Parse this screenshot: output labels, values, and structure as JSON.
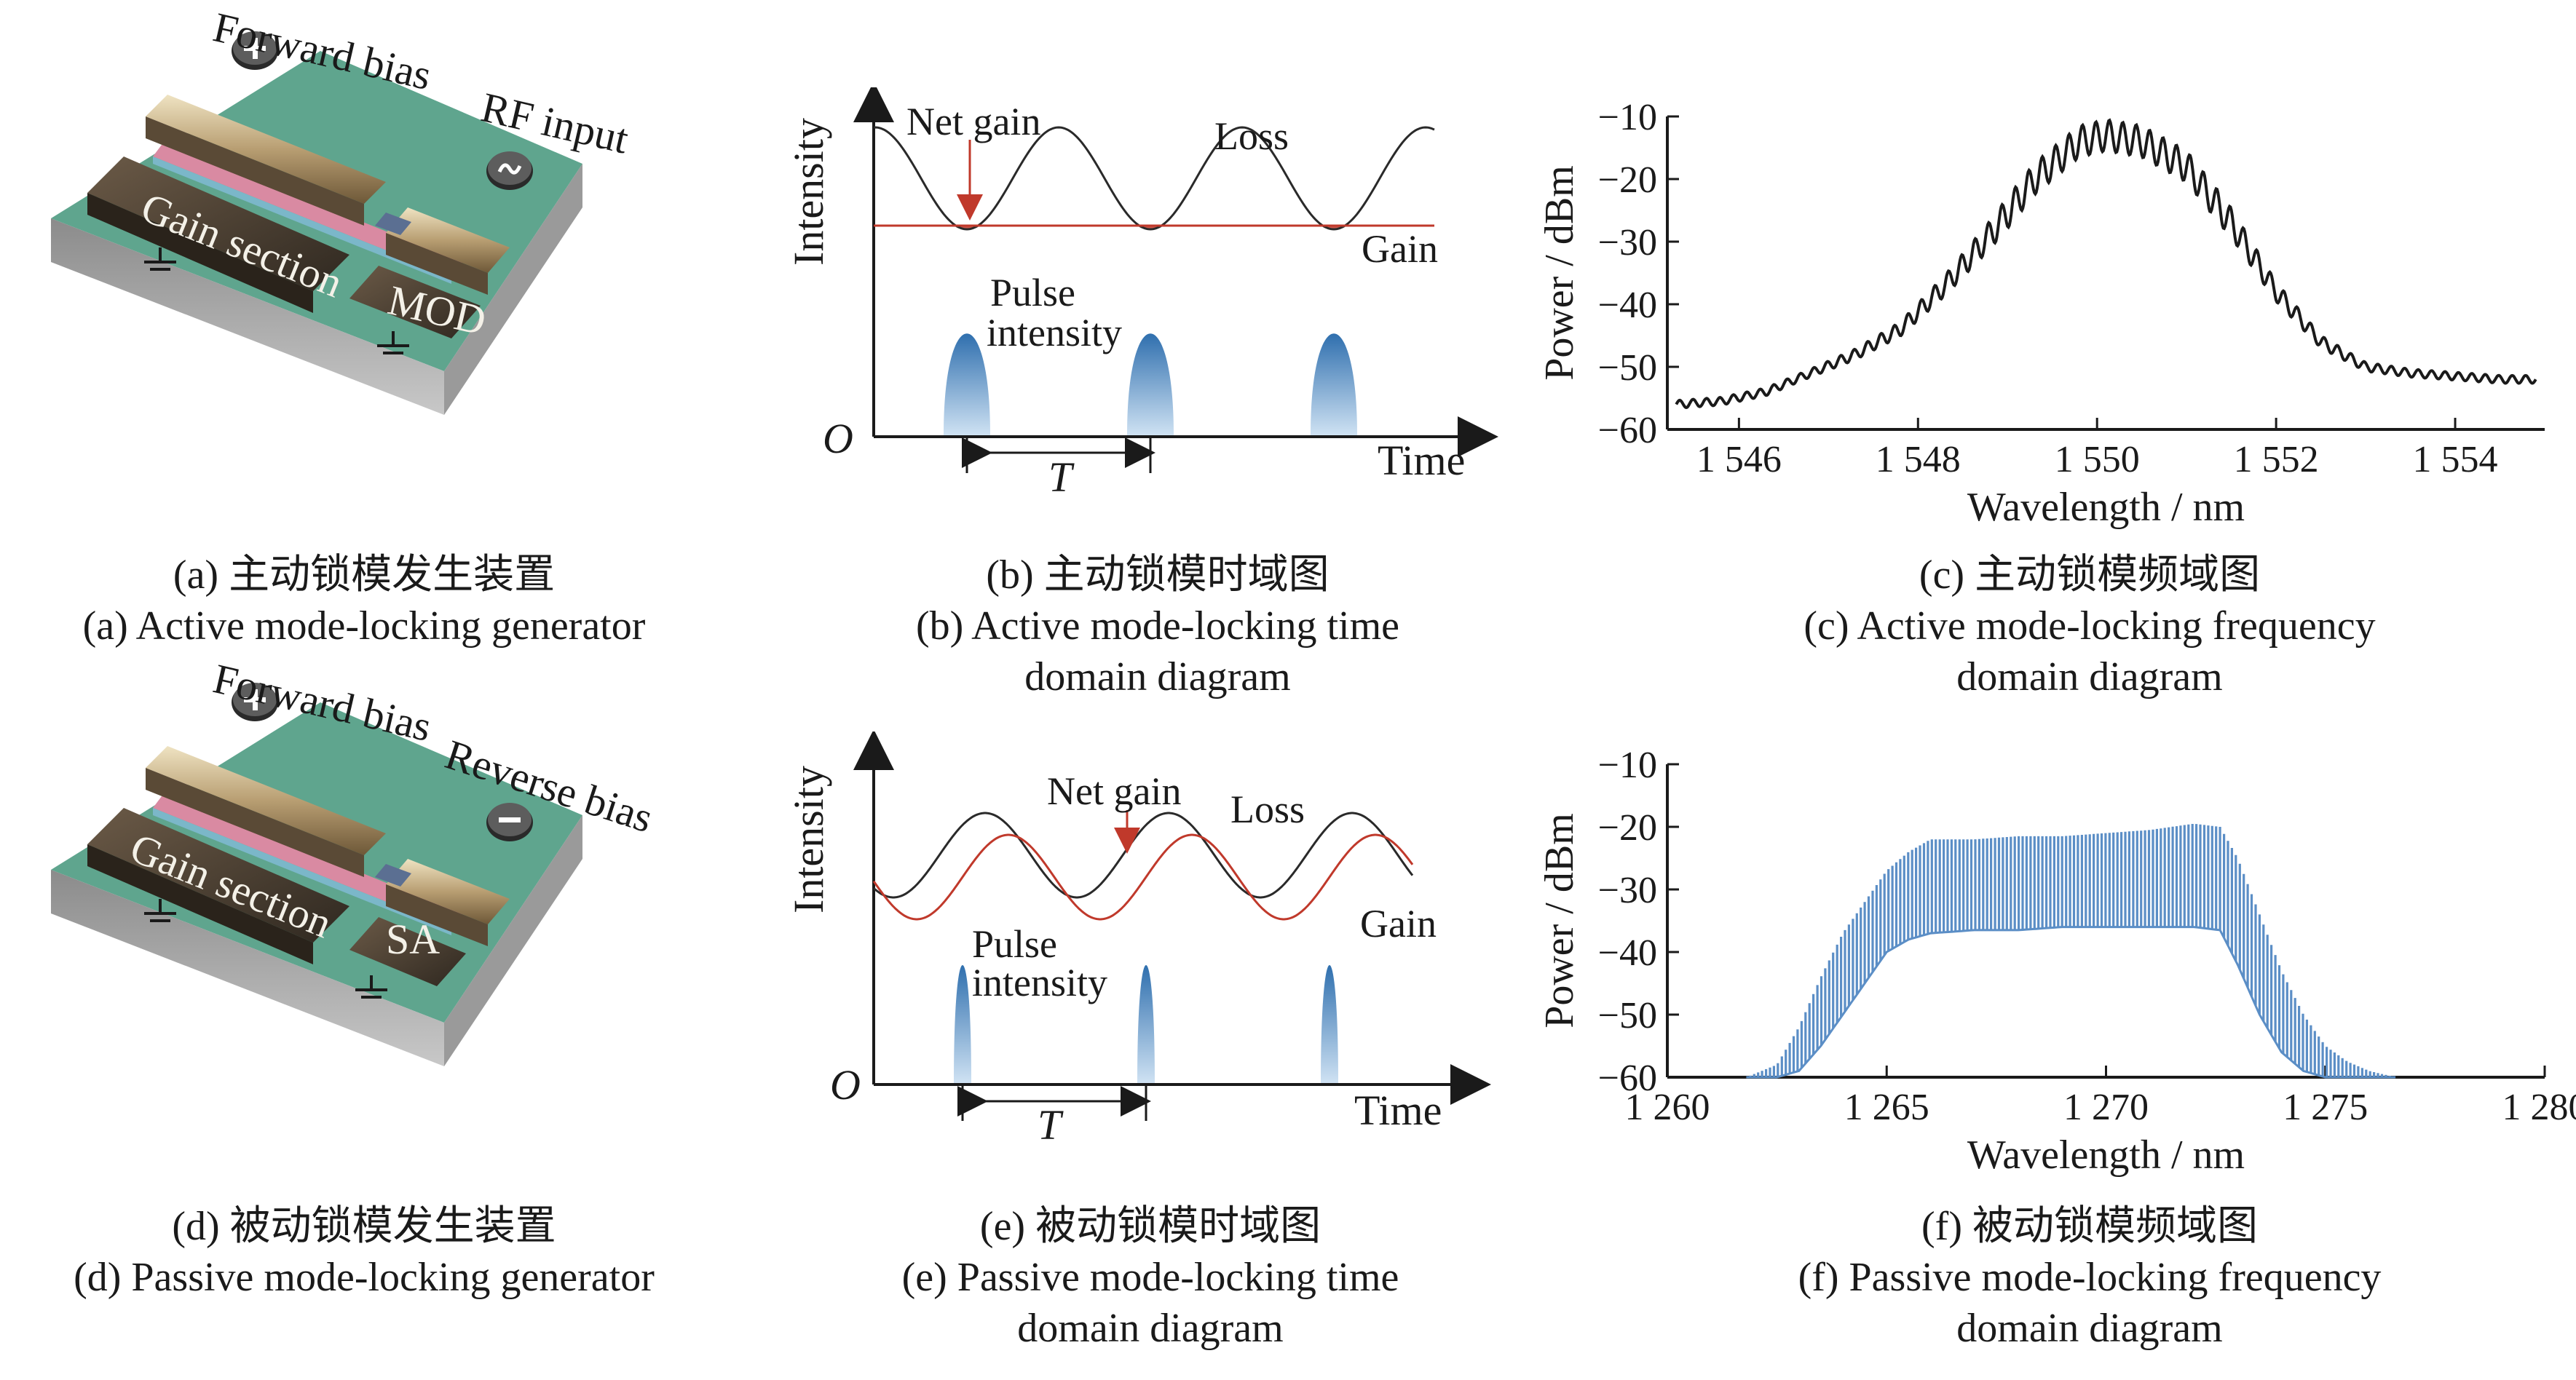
{
  "panels": {
    "a": {
      "labels": {
        "forward_bias": "Forward bias",
        "rf_input": "RF input",
        "gain_section": "Gain section",
        "mod": "MOD"
      },
      "caption_cn": "(a) 主动锁模发生装置",
      "caption_en": "(a) Active mode-locking generator"
    },
    "b": {
      "labels": {
        "ylabel": "Intensity",
        "net_gain": "Net gain",
        "loss": "Loss",
        "gain": "Gain",
        "pulse1": "Pulse",
        "pulse2": "intensity",
        "origin": "O",
        "period": "T",
        "xlabel": "Time"
      },
      "caption_cn": "(b) 主动锁模时域图",
      "caption_en_1": "(b) Active mode-locking time",
      "caption_en_2": "domain diagram"
    },
    "c": {
      "caption_cn": "(c) 主动锁模频域图",
      "caption_en_1": "(c) Active mode-locking frequency",
      "caption_en_2": "domain diagram"
    },
    "d": {
      "labels": {
        "forward_bias": "Forward bias",
        "reverse_bias": "Reverse bias",
        "gain_section": "Gain section",
        "sa": "SA"
      },
      "caption_cn": "(d) 被动锁模发生装置",
      "caption_en": "(d) Passive mode-locking generator"
    },
    "e": {
      "labels": {
        "ylabel": "Intensity",
        "net_gain": "Net gain",
        "loss": "Loss",
        "gain": "Gain",
        "pulse1": "Pulse",
        "pulse2": "intensity",
        "origin": "O",
        "period": "T",
        "xlabel": "Time"
      },
      "caption_cn": "(e) 被动锁模时域图",
      "caption_en_1": "(e) Passive mode-locking time",
      "caption_en_2": "domain diagram"
    },
    "f": {
      "caption_cn": "(f) 被动锁模频域图",
      "caption_en_1": "(f) Passive mode-locking frequency",
      "caption_en_2": "domain diagram"
    }
  },
  "colors": {
    "loss_line": "#2a2a2a",
    "gain_line": "#c0392b",
    "net_gain_fill": "#c0392b",
    "pulse_fill": "#4a86bf",
    "spectrum_c": "#1a1a1a",
    "spectrum_f": "#5b8ec6"
  },
  "chart_data": [
    {
      "id": "c",
      "type": "line",
      "xlabel": "Wavelength / nm",
      "ylabel": "Power / dBm",
      "xlim": [
        1545.2,
        1555
      ],
      "ylim": [
        -60,
        -10
      ],
      "xticks": [
        1546,
        1548,
        1550,
        1552,
        1554
      ],
      "xtick_labels": [
        "1 546",
        "1 548",
        "1 550",
        "1 552",
        "1 554"
      ],
      "yticks": [
        -60,
        -50,
        -40,
        -30,
        -20,
        -10
      ],
      "ytick_labels": [
        "−60",
        "−50",
        "−40",
        "−30",
        "−20",
        "−10"
      ],
      "series": [
        {
          "x": [
            1545.3,
            1545.8,
            1546.3,
            1546.8,
            1547.3,
            1547.8,
            1548.3,
            1548.8,
            1549.3,
            1549.8,
            1550.1,
            1550.5,
            1551.0,
            1551.5,
            1552.0,
            1552.5,
            1553.0,
            1553.5,
            1554.0,
            1554.5,
            1554.9
          ],
          "y": [
            -56,
            -55.5,
            -54,
            -51,
            -48,
            -44,
            -37,
            -29,
            -20,
            -14,
            -13,
            -14,
            -18,
            -27,
            -38,
            -46,
            -50,
            -51,
            -51.5,
            -52,
            -52
          ],
          "ripple_dB": 5,
          "ripple_period_nm": 0.15
        }
      ]
    },
    {
      "id": "f",
      "type": "area",
      "xlabel": "Wavelength / nm",
      "ylabel": "Power / dBm",
      "xlim": [
        1260,
        1280
      ],
      "ylim": [
        -60,
        -10
      ],
      "xticks": [
        1260,
        1265,
        1270,
        1275,
        1280
      ],
      "xtick_labels": [
        "1 260",
        "1 265",
        "1 270",
        "1 275",
        "1 280"
      ],
      "yticks": [
        -60,
        -50,
        -40,
        -30,
        -20,
        -10
      ],
      "ytick_labels": [
        "−60",
        "−50",
        "−40",
        "−30",
        "−20",
        "−10"
      ],
      "series": [
        {
          "x": [
            1261.8,
            1262.5,
            1263.0,
            1263.5,
            1264.0,
            1264.5,
            1265.0,
            1265.5,
            1266.0,
            1267.0,
            1268.0,
            1269.0,
            1270.0,
            1271.0,
            1272.0,
            1272.6,
            1273.0,
            1273.5,
            1274.0,
            1274.5,
            1275.0,
            1275.5,
            1276.0,
            1276.6
          ],
          "y_top": [
            -60,
            -58,
            -52,
            -44,
            -37,
            -32,
            -27,
            -24,
            -22,
            -22,
            -21.5,
            -21.5,
            -21,
            -20.5,
            -19.5,
            -20,
            -25,
            -34,
            -43,
            -50,
            -55,
            -57.5,
            -59,
            -60
          ],
          "y_bottom": [
            -60,
            -60,
            -59,
            -55,
            -50,
            -45,
            -40,
            -38,
            -37,
            -36.5,
            -36.5,
            -36,
            -36,
            -36,
            -36,
            -36.5,
            -42,
            -50,
            -56,
            -59,
            -60,
            -60,
            -60,
            -60
          ],
          "comb_spacing_nm": 0.09
        }
      ]
    }
  ]
}
